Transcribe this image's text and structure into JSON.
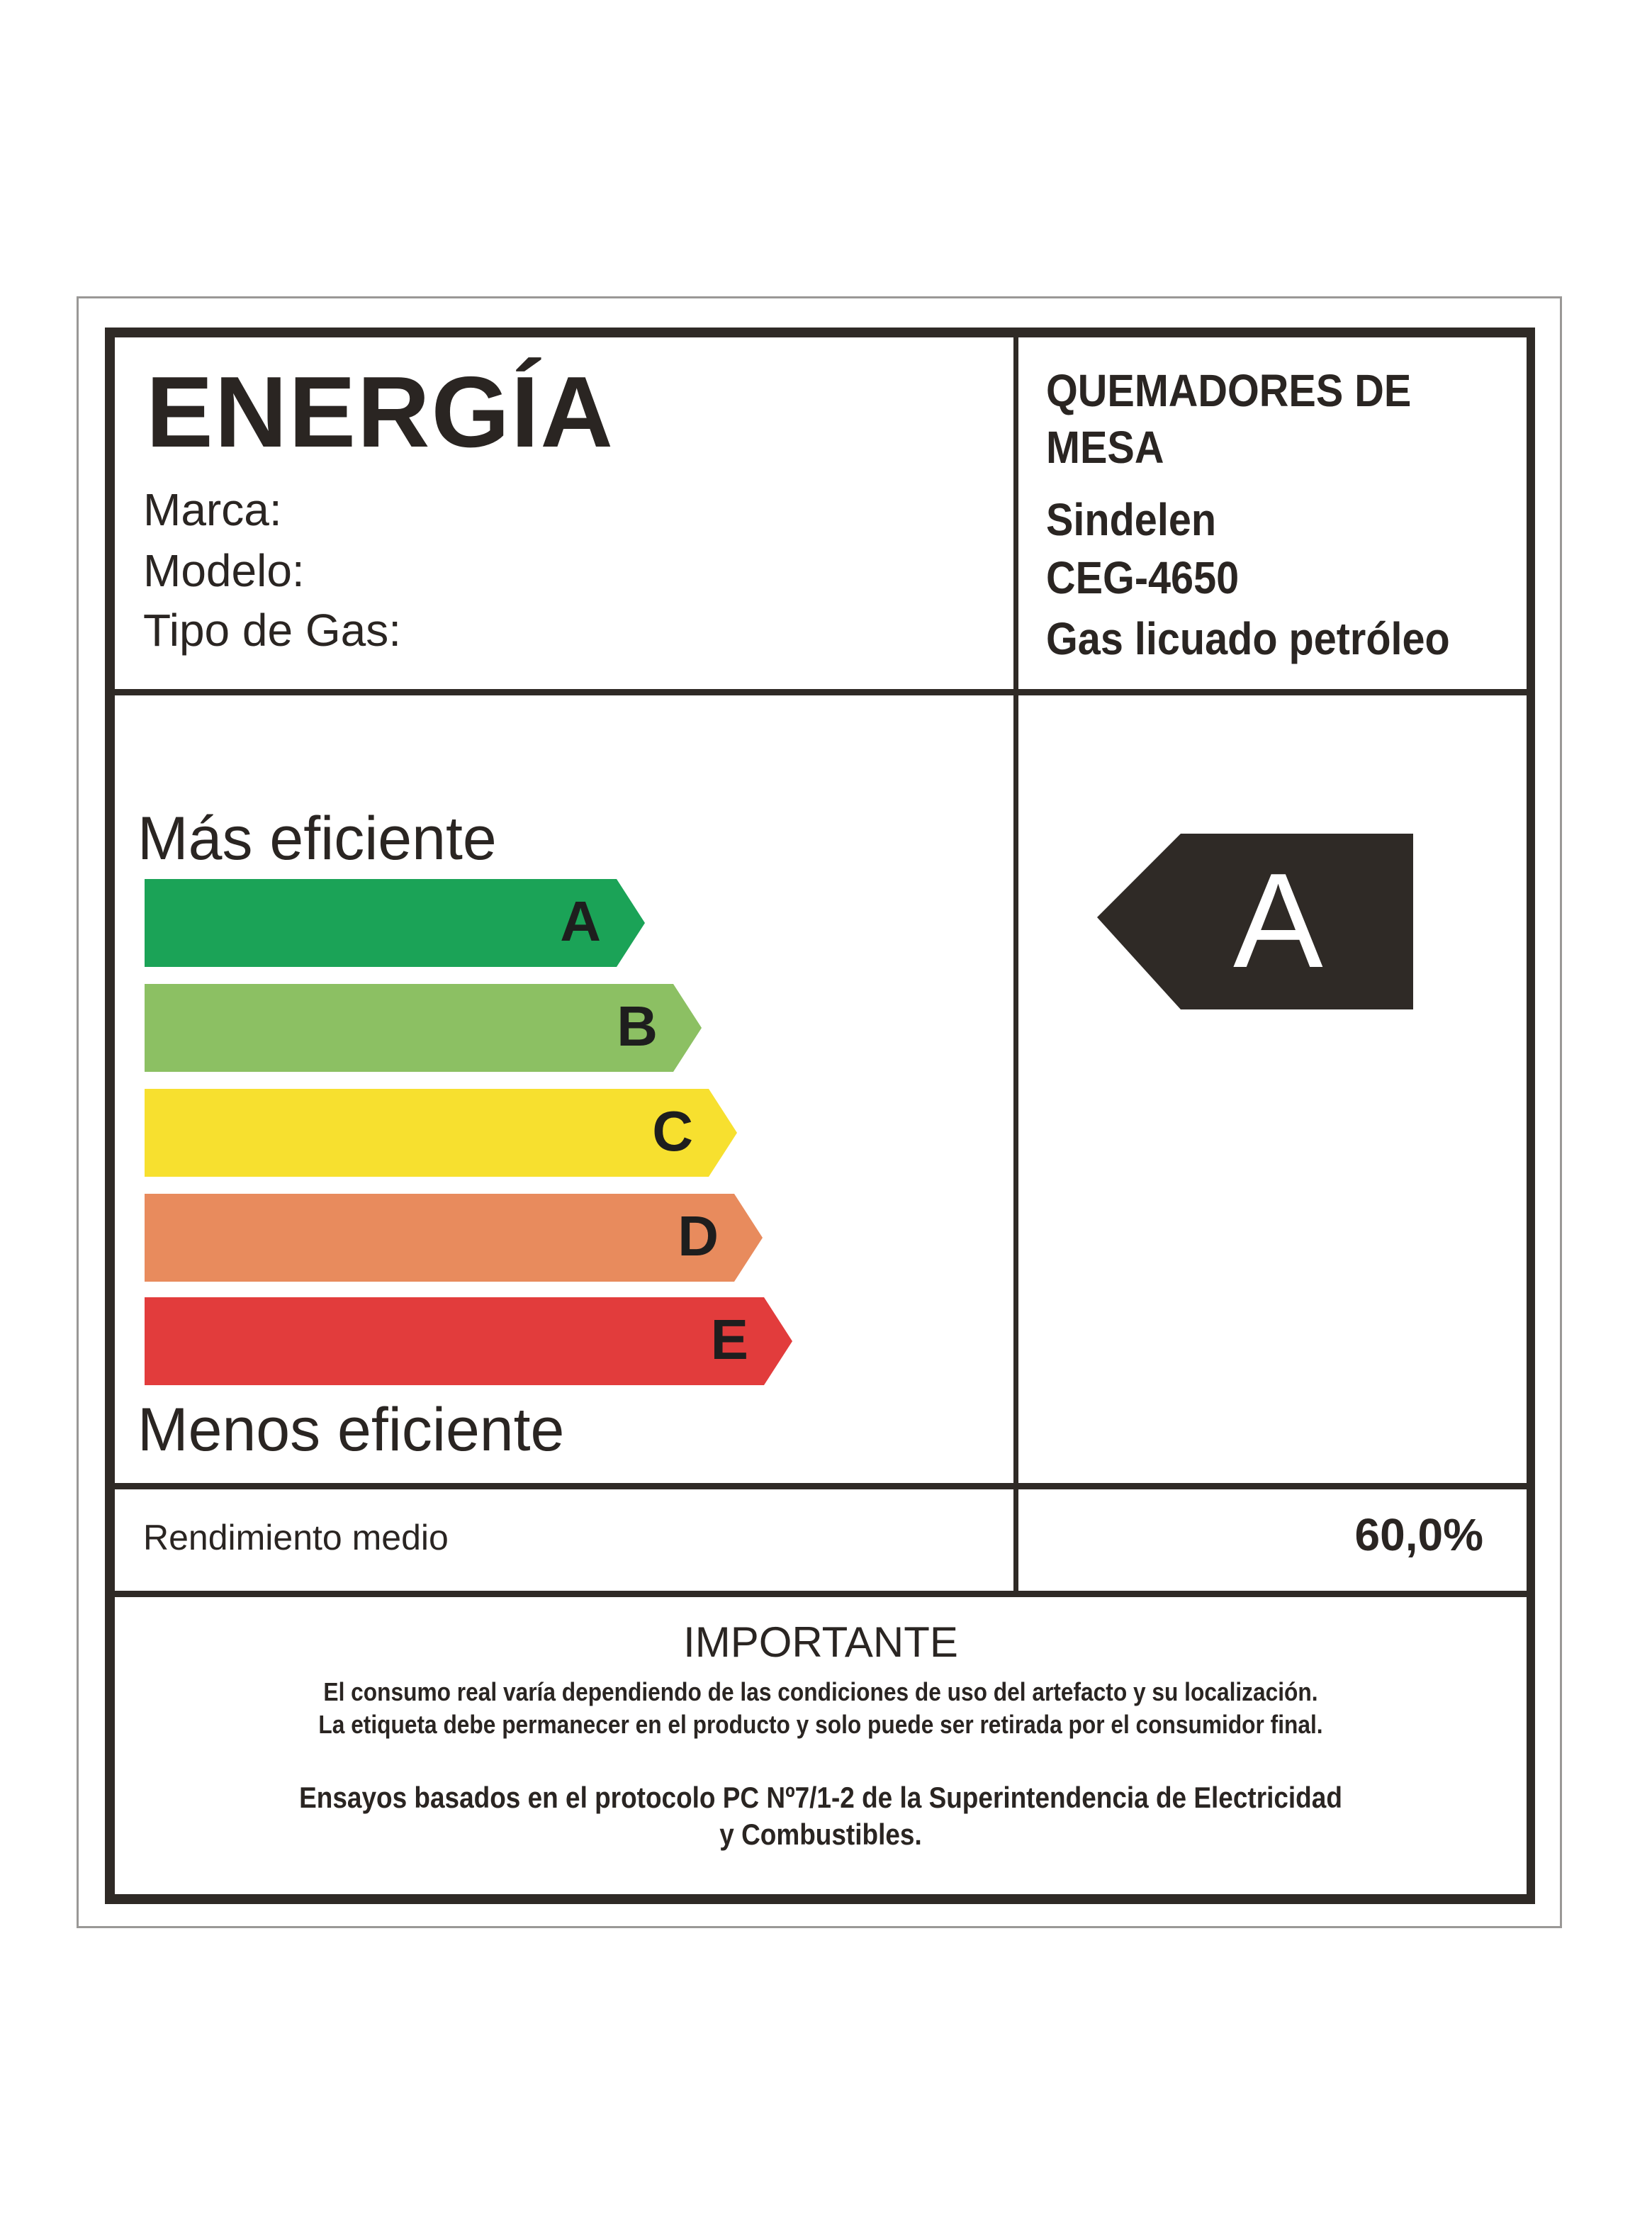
{
  "label": {
    "title": "ENERGÍA",
    "fields": [
      {
        "label": "Marca:",
        "value": "Sindelen"
      },
      {
        "label": "Modelo:",
        "value": "CEG-4650"
      },
      {
        "label": "Tipo de Gas:",
        "value": "Gas licuado petróleo"
      }
    ],
    "category_line1": "QUEMADORES DE",
    "category_line2": "MESA",
    "scale_top": "Más eficiente",
    "scale_bottom": "Menos eficiente",
    "classes": [
      {
        "letter": "A",
        "color": "#1ba357"
      },
      {
        "letter": "B",
        "color": "#8cc063"
      },
      {
        "letter": "C",
        "color": "#f7e02f"
      },
      {
        "letter": "D",
        "color": "#e88b5d"
      },
      {
        "letter": "E",
        "color": "#e23c3c"
      }
    ],
    "rating": "A",
    "rating_color": "#2f2a26",
    "performance_label": "Rendimiento medio",
    "performance_value": "60,0%",
    "important_title": "IMPORTANTE",
    "important_line1": "El consumo real varía dependiendo de las condiciones de uso del artefacto y su localización.",
    "important_line2": "La etiqueta debe permanecer en el producto y solo puede ser retirada por el consumidor final.",
    "protocol_line1": "Ensayos basados en el protocolo PC Nº7/1-2 de la Superintendencia de Electricidad",
    "protocol_line2": "y Combustibles."
  }
}
